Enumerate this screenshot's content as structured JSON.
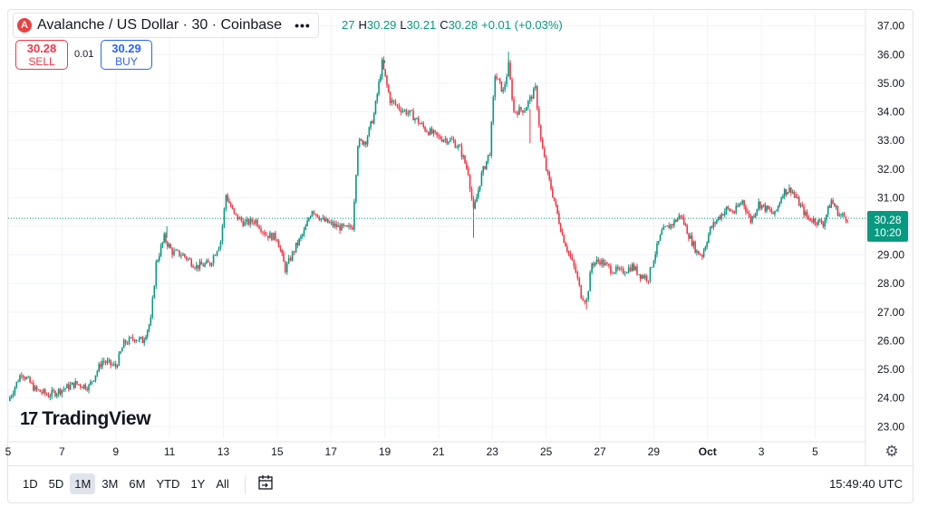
{
  "header": {
    "title": "Avalanche / US Dollar · 30 · Coinbase",
    "logo_letter": "A",
    "more_label": "•••",
    "ohlc": {
      "o_partial": "27",
      "h_label": "H",
      "h": "30.29",
      "l_label": "L",
      "l": "30.21",
      "c_label": "C",
      "c": "30.28",
      "change": "+0.01 (+0.03%)"
    }
  },
  "trade": {
    "sell_price": "30.28",
    "sell_label": "SELL",
    "spread": "0.01",
    "buy_price": "30.29",
    "buy_label": "BUY"
  },
  "price_tag": {
    "price": "30.28",
    "countdown": "10:20"
  },
  "brand": {
    "mark": "17",
    "name": "TradingView"
  },
  "toolbar": {
    "ranges": [
      "1D",
      "5D",
      "1M",
      "3M",
      "6M",
      "YTD",
      "1Y",
      "All"
    ],
    "active_range": "1M",
    "time": "15:49:40 UTC"
  },
  "colors": {
    "up": "#089981",
    "down": "#f23645",
    "grid": "#f0f3fa",
    "text": "#131722"
  },
  "chart_data": {
    "type": "candlestick",
    "ylim": [
      22.6,
      37.4
    ],
    "yticks": [
      23,
      24,
      25,
      26,
      27,
      28,
      29,
      30,
      31,
      32,
      33,
      34,
      35,
      36,
      37
    ],
    "yticks_labels": [
      "23.00",
      "24.00",
      "25.00",
      "26.00",
      "27.00",
      "28.00",
      "29.00",
      "30.00",
      "31.00",
      "32.00",
      "33.00",
      "34.00",
      "35.00",
      "36.00",
      "37.00"
    ],
    "x_axis": {
      "start_day": 5,
      "end_day": 36.6,
      "ticks": [
        {
          "day": 5,
          "label": "5"
        },
        {
          "day": 7,
          "label": "7"
        },
        {
          "day": 9,
          "label": "9"
        },
        {
          "day": 11,
          "label": "11"
        },
        {
          "day": 13,
          "label": "13"
        },
        {
          "day": 15,
          "label": "15"
        },
        {
          "day": 17,
          "label": "17"
        },
        {
          "day": 19,
          "label": "19"
        },
        {
          "day": 21,
          "label": "21"
        },
        {
          "day": 23,
          "label": "23"
        },
        {
          "day": 25,
          "label": "25"
        },
        {
          "day": 27,
          "label": "27"
        },
        {
          "day": 29,
          "label": "29"
        },
        {
          "day": 31,
          "label": "Oct"
        },
        {
          "day": 33,
          "label": "3"
        },
        {
          "day": 35,
          "label": "5"
        }
      ]
    },
    "current_price": 30.28,
    "price_path": [
      [
        5.0,
        23.9
      ],
      [
        5.5,
        24.9
      ],
      [
        6.0,
        24.3
      ],
      [
        6.5,
        24.1
      ],
      [
        7.0,
        24.3
      ],
      [
        7.5,
        24.5
      ],
      [
        8.0,
        24.4
      ],
      [
        8.5,
        25.3
      ],
      [
        9.0,
        25.1
      ],
      [
        9.3,
        25.9
      ],
      [
        9.7,
        26.1
      ],
      [
        10.0,
        26.0
      ],
      [
        10.3,
        26.7
      ],
      [
        10.5,
        28.7
      ],
      [
        10.8,
        29.6
      ],
      [
        11.1,
        29.1
      ],
      [
        11.5,
        29.0
      ],
      [
        12.0,
        28.6
      ],
      [
        12.5,
        28.7
      ],
      [
        12.9,
        29.5
      ],
      [
        13.1,
        31.1
      ],
      [
        13.4,
        30.4
      ],
      [
        13.8,
        30.1
      ],
      [
        14.2,
        30.2
      ],
      [
        14.6,
        29.7
      ],
      [
        15.0,
        29.6
      ],
      [
        15.3,
        28.5
      ],
      [
        15.7,
        29.3
      ],
      [
        16.0,
        29.8
      ],
      [
        16.3,
        30.6
      ],
      [
        16.7,
        30.2
      ],
      [
        17.2,
        30.0
      ],
      [
        17.6,
        29.9
      ],
      [
        17.8,
        30.0
      ],
      [
        18.0,
        32.9
      ],
      [
        18.3,
        33.0
      ],
      [
        18.6,
        33.9
      ],
      [
        18.9,
        35.7
      ],
      [
        19.2,
        34.4
      ],
      [
        19.6,
        34.1
      ],
      [
        20.0,
        33.9
      ],
      [
        20.5,
        33.4
      ],
      [
        21.0,
        33.1
      ],
      [
        21.5,
        33.0
      ],
      [
        21.8,
        32.7
      ],
      [
        22.1,
        31.9
      ],
      [
        22.3,
        30.5
      ],
      [
        22.6,
        31.8
      ],
      [
        22.9,
        32.6
      ],
      [
        23.1,
        35.3
      ],
      [
        23.4,
        34.7
      ],
      [
        23.6,
        35.6
      ],
      [
        23.8,
        34.0
      ],
      [
        24.2,
        34.1
      ],
      [
        24.6,
        34.8
      ],
      [
        24.8,
        33.0
      ],
      [
        25.0,
        32.0
      ],
      [
        25.3,
        30.9
      ],
      [
        25.6,
        29.7
      ],
      [
        25.9,
        28.9
      ],
      [
        26.1,
        28.4
      ],
      [
        26.3,
        27.6
      ],
      [
        26.5,
        27.4
      ],
      [
        26.7,
        28.7
      ],
      [
        27.0,
        28.8
      ],
      [
        27.4,
        28.5
      ],
      [
        27.8,
        28.4
      ],
      [
        28.2,
        28.6
      ],
      [
        28.5,
        28.3
      ],
      [
        28.8,
        28.2
      ],
      [
        29.0,
        28.9
      ],
      [
        29.3,
        29.8
      ],
      [
        29.7,
        30.1
      ],
      [
        30.0,
        30.4
      ],
      [
        30.3,
        29.7
      ],
      [
        30.6,
        29.1
      ],
      [
        30.8,
        29.0
      ],
      [
        31.1,
        29.9
      ],
      [
        31.4,
        30.3
      ],
      [
        31.7,
        30.6
      ],
      [
        32.0,
        30.5
      ],
      [
        32.3,
        30.9
      ],
      [
        32.6,
        30.2
      ],
      [
        32.9,
        30.8
      ],
      [
        33.2,
        30.6
      ],
      [
        33.5,
        30.4
      ],
      [
        33.8,
        31.2
      ],
      [
        34.1,
        31.3
      ],
      [
        34.4,
        30.8
      ],
      [
        34.7,
        30.3
      ],
      [
        35.0,
        30.2
      ],
      [
        35.3,
        30.1
      ],
      [
        35.6,
        30.9
      ],
      [
        35.9,
        30.4
      ],
      [
        36.2,
        30.3
      ]
    ],
    "spikes": [
      {
        "day": 10.9,
        "high": 30.0
      },
      {
        "day": 22.3,
        "low": 29.6
      },
      {
        "day": 23.6,
        "high": 36.1
      },
      {
        "day": 24.4,
        "low": 32.9
      },
      {
        "day": 26.5,
        "low": 27.1
      },
      {
        "day": 19.0,
        "high": 35.8
      }
    ]
  }
}
